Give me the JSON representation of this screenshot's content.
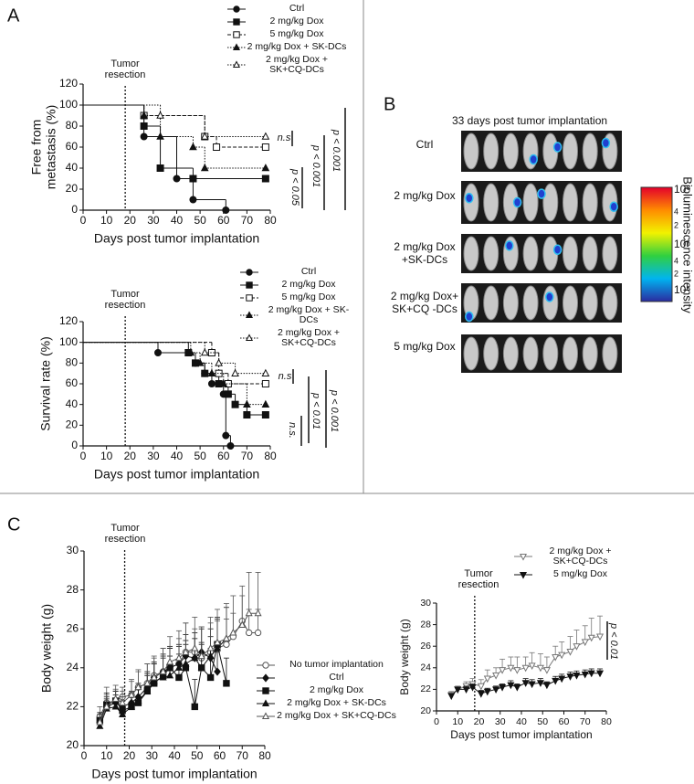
{
  "panel_labels": [
    "A",
    "B",
    "C"
  ],
  "imaging": {
    "title": "33 days post tumor implantation",
    "rows": [
      "Ctrl",
      "2 mg/kg Dox",
      "2 mg/kg  Dox +SK-DCs",
      "2 mg/kg Dox+ SK+CQ -DCs",
      "5 mg/kg Dox"
    ],
    "colorbar_label": "Bioluminescence intensity",
    "colorbar_ticks": [
      "10⁸",
      "4",
      "2",
      "10⁷",
      "4",
      "2",
      "10⁶"
    ]
  },
  "chart_data": [
    {
      "type": "step",
      "ylabel": [
        "Free from",
        "metastasis (%)"
      ],
      "xlabel": "Days post tumor implantation",
      "xlim": [
        0,
        80
      ],
      "xticks": [
        0,
        10,
        20,
        30,
        40,
        50,
        60,
        70,
        80
      ],
      "ylim": [
        0,
        120
      ],
      "yticks": [
        0,
        20,
        40,
        60,
        80,
        100,
        120
      ],
      "resection_day": 18,
      "resection_label": [
        "Tumor",
        "resection"
      ],
      "annotations": [
        "n.s",
        "p < 0.05",
        "p < 0.001",
        "p < 0.001"
      ],
      "series": [
        {
          "name": "Ctrl",
          "color": "#111111",
          "marker": "circle",
          "filled": true,
          "dash": "solid",
          "x": [
            0,
            26,
            40,
            47,
            61
          ],
          "values": [
            100,
            70,
            30,
            10,
            0
          ]
        },
        {
          "name": "2 mg/kg Dox",
          "color": "#111111",
          "marker": "square",
          "filled": true,
          "dash": "solid",
          "x": [
            0,
            26,
            33,
            47,
            78
          ],
          "values": [
            100,
            80,
            40,
            30,
            30
          ]
        },
        {
          "name": "5 mg/kg Dox",
          "color": "#111111",
          "marker": "square",
          "filled": false,
          "dash": "dashed",
          "x": [
            0,
            26,
            52,
            57,
            78
          ],
          "values": [
            100,
            90,
            70,
            60,
            60
          ]
        },
        {
          "name": "2 mg/kg Dox + SK-DCs",
          "color": "#111111",
          "marker": "triangle",
          "filled": true,
          "dash": "dotted",
          "x": [
            0,
            26,
            33,
            47,
            52,
            78
          ],
          "values": [
            100,
            90,
            70,
            60,
            40,
            40
          ]
        },
        {
          "name": "2 mg/kg Dox + SK+CQ-DCs",
          "color": "#111111",
          "marker": "triangle",
          "filled": false,
          "dash": "dotted",
          "x": [
            0,
            33,
            52,
            78
          ],
          "values": [
            100,
            90,
            70,
            70
          ]
        }
      ]
    },
    {
      "type": "step",
      "ylabel": [
        "Survival rate (%)"
      ],
      "xlabel": "Days post tumor implantation",
      "xlim": [
        0,
        80
      ],
      "xticks": [
        0,
        10,
        20,
        30,
        40,
        50,
        60,
        70,
        80
      ],
      "ylim": [
        0,
        120
      ],
      "yticks": [
        0,
        20,
        40,
        60,
        80,
        100,
        120
      ],
      "resection_day": 18,
      "resection_label": [
        "Tumor",
        "resection"
      ],
      "annotations": [
        "n.s",
        "p < 0.01",
        "p < 0.001",
        "n.s."
      ],
      "series": [
        {
          "name": "Ctrl",
          "color": "#111111",
          "marker": "circle",
          "filled": true,
          "dash": "solid",
          "x": [
            0,
            32,
            48,
            52,
            55,
            60,
            61,
            63
          ],
          "values": [
            100,
            90,
            80,
            70,
            60,
            50,
            10,
            0
          ]
        },
        {
          "name": "2 mg/kg Dox",
          "color": "#111111",
          "marker": "square",
          "filled": true,
          "dash": "solid",
          "x": [
            0,
            45,
            48,
            52,
            58,
            62,
            65,
            70,
            78
          ],
          "values": [
            100,
            90,
            80,
            70,
            60,
            50,
            40,
            30,
            30
          ]
        },
        {
          "name": "5 mg/kg Dox",
          "color": "#111111",
          "marker": "square",
          "filled": false,
          "dash": "dashed",
          "x": [
            0,
            55,
            58,
            62,
            78
          ],
          "values": [
            100,
            90,
            70,
            60,
            60
          ]
        },
        {
          "name": "2 mg/kg Dox + SK-DCs",
          "color": "#111111",
          "marker": "triangle",
          "filled": true,
          "dash": "dotted",
          "x": [
            0,
            46,
            50,
            55,
            60,
            70,
            78
          ],
          "values": [
            100,
            90,
            80,
            70,
            60,
            40,
            40
          ]
        },
        {
          "name": "2 mg/kg Dox + SK+CQ-DCs",
          "color": "#111111",
          "marker": "triangle",
          "filled": false,
          "dash": "dotted",
          "x": [
            0,
            52,
            58,
            65,
            78
          ],
          "values": [
            100,
            90,
            80,
            70,
            70
          ]
        }
      ]
    },
    {
      "type": "line",
      "ylabel": [
        "Body weight (g)"
      ],
      "xlabel": "Days post tumor implantation",
      "xlim": [
        0,
        80
      ],
      "xticks": [
        0,
        10,
        20,
        30,
        40,
        50,
        60,
        70,
        80
      ],
      "ylim": [
        20,
        30
      ],
      "yticks": [
        20,
        22,
        24,
        26,
        28,
        30
      ],
      "resection_day": 18,
      "resection_label": [
        "Tumor",
        "resection"
      ],
      "annotations": [],
      "series": [
        {
          "name": "No tumor implantation",
          "color": "#555555",
          "marker": "circle",
          "filled": false,
          "dash": "solid",
          "x": [
            7,
            10,
            14,
            17,
            21,
            24,
            28,
            31,
            35,
            38,
            42,
            45,
            49,
            52,
            56,
            59,
            63,
            66,
            70,
            73,
            77
          ],
          "values": [
            21.5,
            22.2,
            22.3,
            22.5,
            22.6,
            23,
            23.2,
            23.6,
            23.8,
            24,
            24.2,
            24.8,
            24.8,
            24.5,
            24.8,
            25,
            25.2,
            25.6,
            26.4,
            25.8,
            25.8
          ],
          "errors": [
            0.5,
            0.8,
            0.6,
            0.5,
            0.7,
            0.8,
            1,
            0.9,
            1.2,
            1,
            1.3,
            1.5,
            1.2,
            1.6,
            1.5,
            1.4,
            1.3,
            1.2,
            1.3,
            1.2,
            1.2
          ]
        },
        {
          "name": "Ctrl",
          "color": "#111111",
          "marker": "diamond",
          "filled": true,
          "dash": "solid",
          "x": [
            7,
            10,
            14,
            17,
            21,
            24,
            28,
            31,
            35,
            38,
            42,
            45,
            49,
            52,
            56,
            59
          ],
          "values": [
            21.2,
            22,
            22.2,
            22,
            22.2,
            22.5,
            23,
            23.5,
            23.8,
            24,
            24.2,
            24.6,
            24.5,
            24.8,
            24.5,
            23.8
          ],
          "errors": [
            0.4,
            0.5,
            0.6,
            0.5,
            0.6,
            0.7,
            0.8,
            0.8,
            0.9,
            1,
            1,
            1.1,
            1,
            1.2,
            1.1,
            1
          ]
        },
        {
          "name": "2 mg/kg Dox",
          "color": "#111111",
          "marker": "square",
          "filled": true,
          "dash": "solid",
          "x": [
            7,
            10,
            14,
            17,
            21,
            24,
            28,
            31,
            35,
            38,
            42,
            45,
            49,
            52,
            56,
            59,
            63
          ],
          "values": [
            21.3,
            22.1,
            22.3,
            21.8,
            22,
            22.2,
            22.8,
            23.2,
            23.6,
            24,
            23.5,
            24,
            22,
            24,
            23.5,
            25.2,
            23.2
          ],
          "errors": [
            0.4,
            0.6,
            0.5,
            0.5,
            0.7,
            0.8,
            0.9,
            1,
            1,
            1.1,
            1.2,
            1.2,
            1.4,
            1.3,
            1.5,
            1.4,
            1.3
          ]
        },
        {
          "name": "2 mg/kg Dox + SK-DCs",
          "color": "#111111",
          "marker": "triangle",
          "filled": true,
          "dash": "solid",
          "x": [
            7,
            10,
            14,
            17,
            21,
            24,
            28,
            31,
            35,
            38,
            42,
            45,
            49,
            52,
            56,
            59,
            63
          ],
          "values": [
            21,
            21.9,
            22,
            21.6,
            22,
            22.3,
            22.8,
            23.3,
            23.5,
            23.6,
            24,
            24.2,
            24.5,
            24,
            24.6,
            25,
            25.5
          ],
          "errors": [
            0.3,
            0.5,
            0.6,
            0.5,
            0.6,
            0.7,
            0.8,
            0.9,
            1,
            1,
            1.1,
            1.2,
            1.3,
            1.2,
            1.4,
            1.5,
            1.6
          ]
        },
        {
          "name": "2 mg/kg Dox + SK+CQ-DCs",
          "color": "#555555",
          "marker": "triangle",
          "filled": false,
          "dash": "solid",
          "x": [
            7,
            10,
            14,
            17,
            21,
            24,
            28,
            31,
            35,
            38,
            42,
            45,
            49,
            52,
            56,
            59,
            63,
            66,
            70,
            73,
            77
          ],
          "values": [
            21.2,
            22,
            22.4,
            22.2,
            22.6,
            23,
            23.2,
            23.5,
            23.8,
            24.3,
            24.5,
            24.8,
            25,
            24.6,
            25,
            25.3,
            25.5,
            25.8,
            26.2,
            26.8,
            26.8
          ],
          "errors": [
            0.4,
            0.6,
            0.7,
            0.6,
            0.8,
            0.9,
            1,
            1.1,
            1.2,
            1.3,
            1.4,
            1.5,
            1.6,
            1.5,
            1.6,
            1.7,
            1.8,
            1.9,
            2,
            2.1,
            2.1
          ]
        }
      ]
    },
    {
      "type": "line",
      "ylabel": [
        "Body weight (g)"
      ],
      "xlabel": "Days post tumor implantation",
      "xlim": [
        0,
        80
      ],
      "xticks": [
        0,
        10,
        20,
        30,
        40,
        50,
        60,
        70,
        80
      ],
      "ylim": [
        20,
        30
      ],
      "yticks": [
        20,
        22,
        24,
        26,
        28,
        30
      ],
      "resection_day": 18,
      "resection_label": [
        "Tumor",
        "resection"
      ],
      "annotations": [
        "p < 0.01"
      ],
      "series": [
        {
          "name": "2 mg/kg Dox + SK+CQ-DCs",
          "color": "#777777",
          "marker": "triangle-down",
          "filled": false,
          "dash": "solid",
          "x": [
            7,
            10,
            14,
            17,
            21,
            24,
            28,
            31,
            35,
            38,
            42,
            45,
            49,
            52,
            56,
            59,
            63,
            66,
            70,
            73,
            77
          ],
          "values": [
            21.5,
            22,
            22.3,
            22.5,
            22.3,
            23,
            23.3,
            23.8,
            24,
            23.8,
            24,
            24.2,
            24,
            23.8,
            25,
            25.2,
            25.5,
            26,
            26.4,
            26.8,
            26.9
          ],
          "errors": [
            0.3,
            0.3,
            0.4,
            0.5,
            0.6,
            0.8,
            0.7,
            1,
            1,
            1.2,
            1,
            1.2,
            1.3,
            1.2,
            1,
            1.2,
            1.4,
            1.5,
            1.5,
            1.8,
            1.9
          ]
        },
        {
          "name": "5 mg/kg Dox",
          "color": "#111111",
          "marker": "triangle-down",
          "filled": true,
          "dash": "solid",
          "x": [
            7,
            10,
            14,
            17,
            21,
            24,
            28,
            31,
            35,
            38,
            42,
            45,
            49,
            52,
            56,
            59,
            63,
            66,
            70,
            73,
            77
          ],
          "values": [
            21.4,
            22,
            22,
            22.2,
            21.6,
            21.8,
            22,
            22.2,
            22.4,
            22.2,
            22.6,
            22.5,
            22.6,
            22.4,
            22.8,
            23,
            23.2,
            23.3,
            23.4,
            23.5,
            23.5
          ],
          "errors": [
            0.2,
            0.2,
            0.3,
            0.3,
            0.3,
            0.3,
            0.3,
            0.3,
            0.4,
            0.3,
            0.4,
            0.4,
            0.4,
            0.3,
            0.4,
            0.4,
            0.4,
            0.4,
            0.4,
            0.4,
            0.4
          ]
        }
      ]
    }
  ]
}
